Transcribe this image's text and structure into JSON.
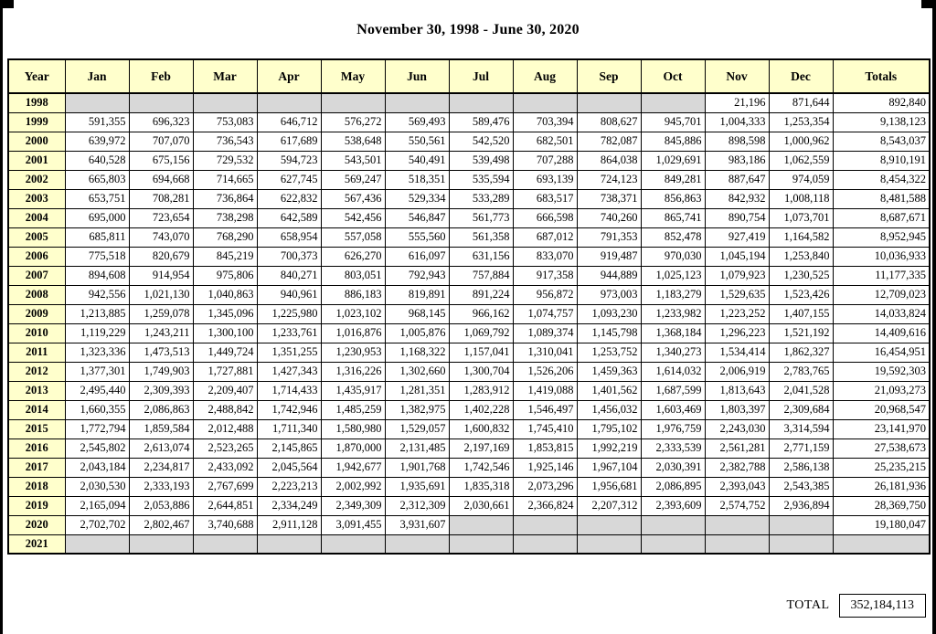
{
  "page": {
    "title": "November 30, 1998 - June 30, 2020"
  },
  "table": {
    "headers": [
      "Year",
      "Jan",
      "Feb",
      "Mar",
      "Apr",
      "May",
      "Jun",
      "Jul",
      "Aug",
      "Sep",
      "Oct",
      "Nov",
      "Dec",
      "Totals"
    ],
    "rows": [
      {
        "year": "1998",
        "values": [
          "",
          "",
          "",
          "",
          "",
          "",
          "",
          "",
          "",
          "",
          "21,196",
          "871,644"
        ],
        "total": "892,840"
      },
      {
        "year": "1999",
        "values": [
          "591,355",
          "696,323",
          "753,083",
          "646,712",
          "576,272",
          "569,493",
          "589,476",
          "703,394",
          "808,627",
          "945,701",
          "1,004,333",
          "1,253,354"
        ],
        "total": "9,138,123"
      },
      {
        "year": "2000",
        "values": [
          "639,972",
          "707,070",
          "736,543",
          "617,689",
          "538,648",
          "550,561",
          "542,520",
          "682,501",
          "782,087",
          "845,886",
          "898,598",
          "1,000,962"
        ],
        "total": "8,543,037"
      },
      {
        "year": "2001",
        "values": [
          "640,528",
          "675,156",
          "729,532",
          "594,723",
          "543,501",
          "540,491",
          "539,498",
          "707,288",
          "864,038",
          "1,029,691",
          "983,186",
          "1,062,559"
        ],
        "total": "8,910,191"
      },
      {
        "year": "2002",
        "values": [
          "665,803",
          "694,668",
          "714,665",
          "627,745",
          "569,247",
          "518,351",
          "535,594",
          "693,139",
          "724,123",
          "849,281",
          "887,647",
          "974,059"
        ],
        "total": "8,454,322"
      },
      {
        "year": "2003",
        "values": [
          "653,751",
          "708,281",
          "736,864",
          "622,832",
          "567,436",
          "529,334",
          "533,289",
          "683,517",
          "738,371",
          "856,863",
          "842,932",
          "1,008,118"
        ],
        "total": "8,481,588"
      },
      {
        "year": "2004",
        "values": [
          "695,000",
          "723,654",
          "738,298",
          "642,589",
          "542,456",
          "546,847",
          "561,773",
          "666,598",
          "740,260",
          "865,741",
          "890,754",
          "1,073,701"
        ],
        "total": "8,687,671"
      },
      {
        "year": "2005",
        "values": [
          "685,811",
          "743,070",
          "768,290",
          "658,954",
          "557,058",
          "555,560",
          "561,358",
          "687,012",
          "791,353",
          "852,478",
          "927,419",
          "1,164,582"
        ],
        "total": "8,952,945"
      },
      {
        "year": "2006",
        "values": [
          "775,518",
          "820,679",
          "845,219",
          "700,373",
          "626,270",
          "616,097",
          "631,156",
          "833,070",
          "919,487",
          "970,030",
          "1,045,194",
          "1,253,840"
        ],
        "total": "10,036,933"
      },
      {
        "year": "2007",
        "values": [
          "894,608",
          "914,954",
          "975,806",
          "840,271",
          "803,051",
          "792,943",
          "757,884",
          "917,358",
          "944,889",
          "1,025,123",
          "1,079,923",
          "1,230,525"
        ],
        "total": "11,177,335"
      },
      {
        "year": "2008",
        "values": [
          "942,556",
          "1,021,130",
          "1,040,863",
          "940,961",
          "886,183",
          "819,891",
          "891,224",
          "956,872",
          "973,003",
          "1,183,279",
          "1,529,635",
          "1,523,426"
        ],
        "total": "12,709,023"
      },
      {
        "year": "2009",
        "values": [
          "1,213,885",
          "1,259,078",
          "1,345,096",
          "1,225,980",
          "1,023,102",
          "968,145",
          "966,162",
          "1,074,757",
          "1,093,230",
          "1,233,982",
          "1,223,252",
          "1,407,155"
        ],
        "total": "14,033,824"
      },
      {
        "year": "2010",
        "values": [
          "1,119,229",
          "1,243,211",
          "1,300,100",
          "1,233,761",
          "1,016,876",
          "1,005,876",
          "1,069,792",
          "1,089,374",
          "1,145,798",
          "1,368,184",
          "1,296,223",
          "1,521,192"
        ],
        "total": "14,409,616"
      },
      {
        "year": "2011",
        "values": [
          "1,323,336",
          "1,473,513",
          "1,449,724",
          "1,351,255",
          "1,230,953",
          "1,168,322",
          "1,157,041",
          "1,310,041",
          "1,253,752",
          "1,340,273",
          "1,534,414",
          "1,862,327"
        ],
        "total": "16,454,951"
      },
      {
        "year": "2012",
        "values": [
          "1,377,301",
          "1,749,903",
          "1,727,881",
          "1,427,343",
          "1,316,226",
          "1,302,660",
          "1,300,704",
          "1,526,206",
          "1,459,363",
          "1,614,032",
          "2,006,919",
          "2,783,765"
        ],
        "total": "19,592,303"
      },
      {
        "year": "2013",
        "values": [
          "2,495,440",
          "2,309,393",
          "2,209,407",
          "1,714,433",
          "1,435,917",
          "1,281,351",
          "1,283,912",
          "1,419,088",
          "1,401,562",
          "1,687,599",
          "1,813,643",
          "2,041,528"
        ],
        "total": "21,093,273"
      },
      {
        "year": "2014",
        "values": [
          "1,660,355",
          "2,086,863",
          "2,488,842",
          "1,742,946",
          "1,485,259",
          "1,382,975",
          "1,402,228",
          "1,546,497",
          "1,456,032",
          "1,603,469",
          "1,803,397",
          "2,309,684"
        ],
        "total": "20,968,547"
      },
      {
        "year": "2015",
        "values": [
          "1,772,794",
          "1,859,584",
          "2,012,488",
          "1,711,340",
          "1,580,980",
          "1,529,057",
          "1,600,832",
          "1,745,410",
          "1,795,102",
          "1,976,759",
          "2,243,030",
          "3,314,594"
        ],
        "total": "23,141,970"
      },
      {
        "year": "2016",
        "values": [
          "2,545,802",
          "2,613,074",
          "2,523,265",
          "2,145,865",
          "1,870,000",
          "2,131,485",
          "2,197,169",
          "1,853,815",
          "1,992,219",
          "2,333,539",
          "2,561,281",
          "2,771,159"
        ],
        "total": "27,538,673"
      },
      {
        "year": "2017",
        "values": [
          "2,043,184",
          "2,234,817",
          "2,433,092",
          "2,045,564",
          "1,942,677",
          "1,901,768",
          "1,742,546",
          "1,925,146",
          "1,967,104",
          "2,030,391",
          "2,382,788",
          "2,586,138"
        ],
        "total": "25,235,215"
      },
      {
        "year": "2018",
        "values": [
          "2,030,530",
          "2,333,193",
          "2,767,699",
          "2,223,213",
          "2,002,992",
          "1,935,691",
          "1,835,318",
          "2,073,296",
          "1,956,681",
          "2,086,895",
          "2,393,043",
          "2,543,385"
        ],
        "total": "26,181,936"
      },
      {
        "year": "2019",
        "values": [
          "2,165,094",
          "2,053,886",
          "2,644,851",
          "2,334,249",
          "2,349,309",
          "2,312,309",
          "2,030,661",
          "2,366,824",
          "2,207,312",
          "2,393,609",
          "2,574,752",
          "2,936,894"
        ],
        "total": "28,369,750"
      },
      {
        "year": "2020",
        "values": [
          "2,702,702",
          "2,802,467",
          "3,740,688",
          "2,911,128",
          "3,091,455",
          "3,931,607",
          "",
          "",
          "",
          "",
          "",
          ""
        ],
        "total": "19,180,047"
      },
      {
        "year": "2021",
        "values": [
          "",
          "",
          "",
          "",
          "",
          "",
          "",
          "",
          "",
          "",
          "",
          ""
        ],
        "total": ""
      }
    ]
  },
  "footer": {
    "total_label": "TOTAL",
    "total_value": "352,184,113"
  },
  "colors": {
    "header_bg": "#FFFFCC",
    "empty_cell_bg": "#D8D8D8",
    "border": "#000000"
  }
}
